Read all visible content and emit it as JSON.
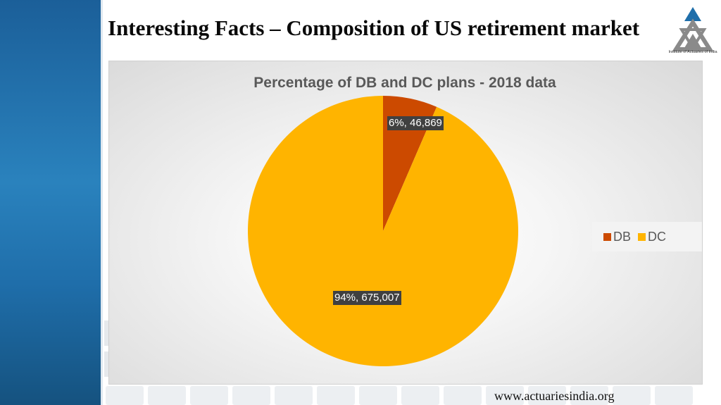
{
  "slide": {
    "title": "Interesting Facts – Composition of US retirement market",
    "footer_url": "www.actuariesindia.org",
    "logo_caption": "Institute of Actuaries of India"
  },
  "chart_data": {
    "type": "pie",
    "title": "Percentage of DB and DC plans - 2018 data",
    "categories": [
      "DB",
      "DC"
    ],
    "values": [
      46869,
      675007
    ],
    "percentages": [
      6,
      94
    ],
    "data_labels": [
      "6%, 46,869",
      "94%, 675,007"
    ],
    "colors": [
      "#CC4A00",
      "#FFB400"
    ],
    "legend": {
      "position": "right",
      "labels": [
        "DB",
        "DC"
      ]
    }
  }
}
